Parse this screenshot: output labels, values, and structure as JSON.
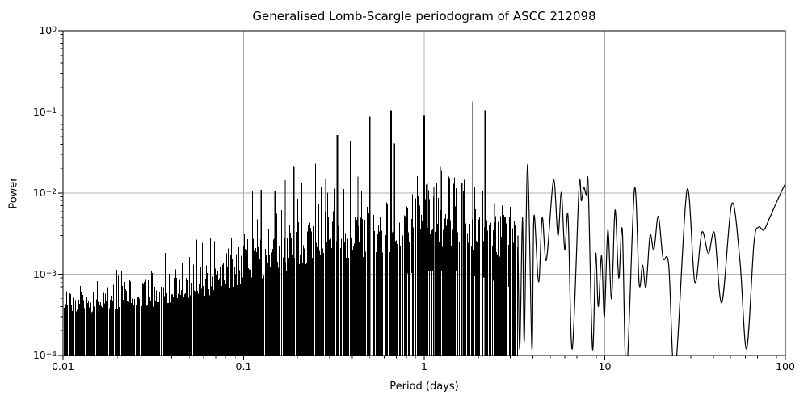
{
  "chart_data": {
    "type": "line",
    "title": "Generalised Lomb-Scargle periodogram of ASCC 212098",
    "xlabel": "Period (days)",
    "ylabel": "Power",
    "xscale": "log",
    "yscale": "log",
    "xlim": [
      0.01,
      100
    ],
    "ylim": [
      0.0001,
      1
    ],
    "grid": true,
    "legend": false,
    "line_color": "#000000",
    "grid_color": "#b0b0b0",
    "background_color": "#ffffff",
    "x_ticks": [
      {
        "value": 0.01,
        "label": "0.01"
      },
      {
        "value": 0.1,
        "label": "0.1"
      },
      {
        "value": 1,
        "label": "1"
      },
      {
        "value": 10,
        "label": "10"
      },
      {
        "value": 100,
        "label": "100"
      }
    ],
    "y_ticks": [
      {
        "value": 1,
        "base": "10",
        "exp": "0"
      },
      {
        "value": 0.1,
        "base": "10",
        "exp": "−1"
      },
      {
        "value": 0.01,
        "base": "10",
        "exp": "−2"
      },
      {
        "value": 0.001,
        "base": "10",
        "exp": "−3"
      },
      {
        "value": 0.0001,
        "base": "10",
        "exp": "−4"
      }
    ],
    "major_peaks": [
      {
        "period": 0.112,
        "power": 0.0105
      },
      {
        "period": 0.125,
        "power": 0.011
      },
      {
        "period": 0.149,
        "power": 0.0105
      },
      {
        "period": 0.17,
        "power": 0.0145
      },
      {
        "period": 0.19,
        "power": 0.021
      },
      {
        "period": 0.21,
        "power": 0.0135
      },
      {
        "period": 0.25,
        "power": 0.023
      },
      {
        "period": 0.285,
        "power": 0.015
      },
      {
        "period": 0.33,
        "power": 0.052
      },
      {
        "period": 0.39,
        "power": 0.044
      },
      {
        "period": 0.43,
        "power": 0.016
      },
      {
        "period": 0.5,
        "power": 0.087
      },
      {
        "period": 0.655,
        "power": 0.105
      },
      {
        "period": 0.685,
        "power": 0.041
      },
      {
        "period": 1.0,
        "power": 0.091
      },
      {
        "period": 1.04,
        "power": 0.013
      },
      {
        "period": 1.13,
        "power": 0.012
      },
      {
        "period": 1.23,
        "power": 0.021
      },
      {
        "period": 1.37,
        "power": 0.016
      },
      {
        "period": 1.46,
        "power": 0.013
      },
      {
        "period": 1.62,
        "power": 0.0135
      },
      {
        "period": 1.86,
        "power": 0.135
      },
      {
        "period": 2.17,
        "power": 0.105
      },
      {
        "period": 2.45,
        "power": 0.0075
      },
      {
        "period": 2.7,
        "power": 0.007
      },
      {
        "period": 3.0,
        "power": 0.0068
      }
    ],
    "noise_envelope": [
      {
        "period": 0.01,
        "solid": 0.00025,
        "typical": 0.0004,
        "max": 0.0007
      },
      {
        "period": 0.02,
        "solid": 0.00028,
        "typical": 0.0005,
        "max": 0.0012
      },
      {
        "period": 0.04,
        "solid": 0.00032,
        "typical": 0.00065,
        "max": 0.0022
      },
      {
        "period": 0.07,
        "solid": 0.0004,
        "typical": 0.0009,
        "max": 0.0032
      },
      {
        "period": 0.1,
        "solid": 0.0005,
        "typical": 0.0012,
        "max": 0.0045
      },
      {
        "period": 0.15,
        "solid": 0.0006,
        "typical": 0.0017,
        "max": 0.009
      },
      {
        "period": 0.25,
        "solid": 0.0008,
        "typical": 0.0025,
        "max": 0.013
      },
      {
        "period": 0.4,
        "solid": 0.0009,
        "typical": 0.0032,
        "max": 0.011
      },
      {
        "period": 0.7,
        "solid": 0.0011,
        "typical": 0.0042,
        "max": 0.016
      },
      {
        "period": 1.0,
        "solid": 0.0012,
        "typical": 0.0048,
        "max": 0.02
      },
      {
        "period": 1.5,
        "solid": 0.0012,
        "typical": 0.0048,
        "max": 0.019
      },
      {
        "period": 2.2,
        "solid": 0.001,
        "typical": 0.0042,
        "max": 0.01
      },
      {
        "period": 3.3,
        "solid": 0.0007,
        "typical": 0.0032,
        "max": 0.0065
      }
    ],
    "dense_region": {
      "min_period": 0.01,
      "max_period": 3.3
    },
    "resolved_curve": [
      {
        "period": 3.3,
        "power": 0.003
      },
      {
        "period": 3.38,
        "power": 0.00012
      },
      {
        "period": 3.5,
        "power": 0.005
      },
      {
        "period": 3.58,
        "power": 0.00015
      },
      {
        "period": 3.74,
        "power": 0.0225
      },
      {
        "period": 3.95,
        "power": 0.00012
      },
      {
        "period": 4.05,
        "power": 0.0052
      },
      {
        "period": 4.3,
        "power": 0.0008
      },
      {
        "period": 4.5,
        "power": 0.005
      },
      {
        "period": 4.75,
        "power": 0.0015
      },
      {
        "period": 5.2,
        "power": 0.0145
      },
      {
        "period": 5.5,
        "power": 0.003
      },
      {
        "period": 5.75,
        "power": 0.0102
      },
      {
        "period": 6.0,
        "power": 0.002
      },
      {
        "period": 6.26,
        "power": 0.0052
      },
      {
        "period": 6.6,
        "power": 0.00012
      },
      {
        "period": 7.2,
        "power": 0.0115
      },
      {
        "period": 7.42,
        "power": 0.008
      },
      {
        "period": 7.65,
        "power": 0.0118
      },
      {
        "period": 7.9,
        "power": 0.0095
      },
      {
        "period": 8.1,
        "power": 0.0122
      },
      {
        "period": 8.55,
        "power": 0.00012
      },
      {
        "period": 8.9,
        "power": 0.0018
      },
      {
        "period": 9.2,
        "power": 0.0004
      },
      {
        "period": 9.6,
        "power": 0.0017
      },
      {
        "period": 9.95,
        "power": 0.0003
      },
      {
        "period": 10.4,
        "power": 0.0035
      },
      {
        "period": 10.9,
        "power": 0.0005
      },
      {
        "period": 11.4,
        "power": 0.0062
      },
      {
        "period": 11.95,
        "power": 0.0009
      },
      {
        "period": 12.5,
        "power": 0.0035
      },
      {
        "period": 13.2,
        "power": 6e-05
      },
      {
        "period": 14.6,
        "power": 0.0112
      },
      {
        "period": 15.5,
        "power": 0.00076
      },
      {
        "period": 16.2,
        "power": 0.0013
      },
      {
        "period": 16.9,
        "power": 0.0007
      },
      {
        "period": 17.8,
        "power": 0.003
      },
      {
        "period": 18.7,
        "power": 0.002
      },
      {
        "period": 19.8,
        "power": 0.0052
      },
      {
        "period": 21.0,
        "power": 0.0016
      },
      {
        "period": 22.6,
        "power": 0.0013
      },
      {
        "period": 24.5,
        "power": 6e-05
      },
      {
        "period": 28.5,
        "power": 0.0108
      },
      {
        "period": 31.5,
        "power": 0.0008
      },
      {
        "period": 34.5,
        "power": 0.0033
      },
      {
        "period": 37.5,
        "power": 0.0018
      },
      {
        "period": 40.5,
        "power": 0.0032
      },
      {
        "period": 44.5,
        "power": 0.00045
      },
      {
        "period": 50.5,
        "power": 0.0074
      },
      {
        "period": 56.0,
        "power": 0.0015
      },
      {
        "period": 61.0,
        "power": 0.00012
      },
      {
        "period": 67.0,
        "power": 0.0024
      },
      {
        "period": 71.0,
        "power": 0.0038
      },
      {
        "period": 76.0,
        "power": 0.0035
      },
      {
        "period": 82.0,
        "power": 0.005
      },
      {
        "period": 90.0,
        "power": 0.008
      },
      {
        "period": 100.0,
        "power": 0.0131
      }
    ]
  }
}
